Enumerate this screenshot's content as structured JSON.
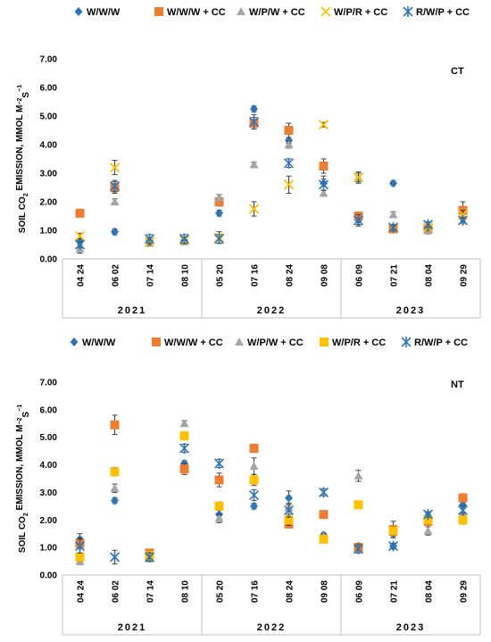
{
  "colors": {
    "W/W/W": "#2e75b6",
    "W/W/W + CC": "#ed7d31",
    "W/P/W + CC": "#a5a5a5",
    "W/P/R + CC": "#ffc000",
    "R/W/P + CC": "#2e75b6",
    "error_bar": "#404040",
    "axis": "#bfbfbf"
  },
  "chart_data": [
    {
      "type": "scatter",
      "panel_label": "CT",
      "ylabel_parts": [
        "SOIL CO",
        "2",
        " EMISSION, MMOL M",
        "−2",
        "S",
        "−1"
      ],
      "ylim": [
        0,
        7
      ],
      "yticks": [
        "0.00",
        "1.00",
        "2.00",
        "3.00",
        "4.00",
        "5.00",
        "6.00",
        "7.00"
      ],
      "categories": [
        "04 24",
        "06 02",
        "07 14",
        "08 10",
        "05 20",
        "07 16",
        "08 24",
        "09 08",
        "06 09",
        "07 21",
        "08 04",
        "09 29"
      ],
      "year_groups": [
        {
          "label": "2021",
          "start": 0,
          "end": 3
        },
        {
          "label": "2022",
          "start": 4,
          "end": 7
        },
        {
          "label": "2023",
          "start": 8,
          "end": 11
        }
      ],
      "legend": [
        "W/W/W",
        "W/W/W + CC",
        "W/P/W + CC",
        "W/P/R + CC",
        "R/W/P + CC"
      ],
      "series": [
        {
          "name": "W/W/W",
          "marker": "diamond",
          "values": [
            0.6,
            0.95,
            0.65,
            0.65,
            1.6,
            5.25,
            4.15,
            2.65,
            1.35,
            2.65,
            1.1,
            1.45
          ],
          "errors": [
            0.1,
            0.1,
            0.08,
            0.08,
            0.1,
            0.1,
            0.1,
            0.25,
            0.15,
            0.08,
            0.1,
            0.12
          ]
        },
        {
          "name": "W/W/W + CC",
          "marker": "square",
          "values": [
            1.6,
            2.5,
            null,
            null,
            2.0,
            4.75,
            4.5,
            3.25,
            1.5,
            1.05,
            1.05,
            1.7
          ],
          "errors": [
            0.08,
            0.2,
            0,
            0,
            0.15,
            0.2,
            0.25,
            0.25,
            0.12,
            0.12,
            0.12,
            0.3
          ]
        },
        {
          "name": "W/P/W + CC",
          "marker": "triangle",
          "values": [
            0.35,
            2.0,
            0.55,
            0.6,
            2.15,
            3.3,
            4.0,
            2.3,
            2.85,
            1.55,
            1.0,
            1.5
          ],
          "errors": [
            0.15,
            0.1,
            0.1,
            0.1,
            0.1,
            0.08,
            0.12,
            0.1,
            0.2,
            0.1,
            0.12,
            0.12
          ]
        },
        {
          "name": "W/P/R + CC",
          "marker": "x",
          "values": [
            0.8,
            3.2,
            0.6,
            0.65,
            0.75,
            1.75,
            2.6,
            4.7,
            2.85,
            1.1,
            1.1,
            1.55
          ],
          "errors": [
            0.1,
            0.25,
            0.1,
            0.1,
            0.2,
            0.25,
            0.3,
            0.08,
            0.15,
            0.1,
            0.1,
            0.15
          ]
        },
        {
          "name": "R/W/P + CC",
          "marker": "asterisk",
          "values": [
            0.5,
            2.55,
            0.7,
            0.7,
            0.7,
            4.8,
            3.35,
            2.6,
            1.35,
            1.1,
            1.2,
            1.35
          ],
          "errors": [
            0.1,
            0.2,
            0.15,
            0.15,
            0.15,
            0.25,
            0.15,
            0.2,
            0.2,
            0.1,
            0.1,
            0.1
          ]
        }
      ]
    },
    {
      "type": "scatter",
      "panel_label": "NT",
      "ylabel_parts": [
        "SOIL CO",
        "2",
        " EMISSION, MMOL M",
        "−2",
        "S",
        "−1"
      ],
      "ylim": [
        0,
        7
      ],
      "yticks": [
        "0.00",
        "1.00",
        "2.00",
        "3.00",
        "4.00",
        "5.00",
        "6.00",
        "7.00"
      ],
      "categories": [
        "04 24",
        "06 02",
        "07 14",
        "08 10",
        "05 20",
        "07 16",
        "08 24",
        "09 08",
        "06 09",
        "07 21",
        "08 04",
        "09 29"
      ],
      "year_groups": [
        {
          "label": "2021",
          "start": 0,
          "end": 3
        },
        {
          "label": "2022",
          "start": 4,
          "end": 7
        },
        {
          "label": "2023",
          "start": 8,
          "end": 11
        }
      ],
      "legend": [
        "W/W/W",
        "W/W/W + CC",
        "W/P/W + CC",
        "W/P/R + CC",
        "R/W/P + CC"
      ],
      "series": [
        {
          "name": "W/W/W",
          "marker": "diamond",
          "values": [
            1.3,
            2.7,
            0.8,
            4.05,
            2.2,
            2.5,
            2.8,
            1.45,
            1.05,
            1.05,
            2.15,
            2.55
          ],
          "errors": [
            0.2,
            0.1,
            0.1,
            0.1,
            0.15,
            0.1,
            0.25,
            0.08,
            0.1,
            0.08,
            0.1,
            0.15
          ]
        },
        {
          "name": "W/W/W + CC",
          "marker": "square",
          "values": [
            1.15,
            5.45,
            0.8,
            3.85,
            3.45,
            4.6,
            1.85,
            2.2,
            1.0,
            1.65,
            1.95,
            2.8
          ],
          "errors": [
            0.2,
            0.35,
            0.08,
            0.2,
            0.25,
            0.15,
            0.1,
            0.08,
            0.15,
            0.3,
            0.2,
            0.15
          ]
        },
        {
          "name": "W/P/W + CC",
          "marker": "triangle",
          "values": [
            0.5,
            3.15,
            0.6,
            5.5,
            2.05,
            3.95,
            2.45,
            1.4,
            3.6,
            1.55,
            1.6,
            2.1
          ],
          "errors": [
            0.12,
            0.15,
            0.1,
            0.1,
            0.15,
            0.3,
            0.15,
            0.1,
            0.2,
            0.15,
            0.15,
            0.15
          ]
        },
        {
          "name": "W/P/R + CC",
          "marker": "square-yellow",
          "values": [
            0.65,
            3.75,
            0.7,
            5.05,
            2.5,
            3.45,
            2.0,
            1.3,
            2.55,
            1.6,
            2.0,
            2.0
          ],
          "errors": [
            0.15,
            0.15,
            0.1,
            0.1,
            0.15,
            0.2,
            0.2,
            0.1,
            0.1,
            0.15,
            0.15,
            0.15
          ]
        },
        {
          "name": "R/W/P + CC",
          "marker": "asterisk",
          "values": [
            1.05,
            0.65,
            0.65,
            4.6,
            4.05,
            2.9,
            2.35,
            3.0,
            0.95,
            1.05,
            2.2,
            2.35
          ],
          "errors": [
            0.25,
            0.25,
            0.15,
            0.15,
            0.15,
            0.2,
            0.25,
            0.12,
            0.15,
            0.1,
            0.1,
            0.15
          ]
        }
      ]
    }
  ]
}
